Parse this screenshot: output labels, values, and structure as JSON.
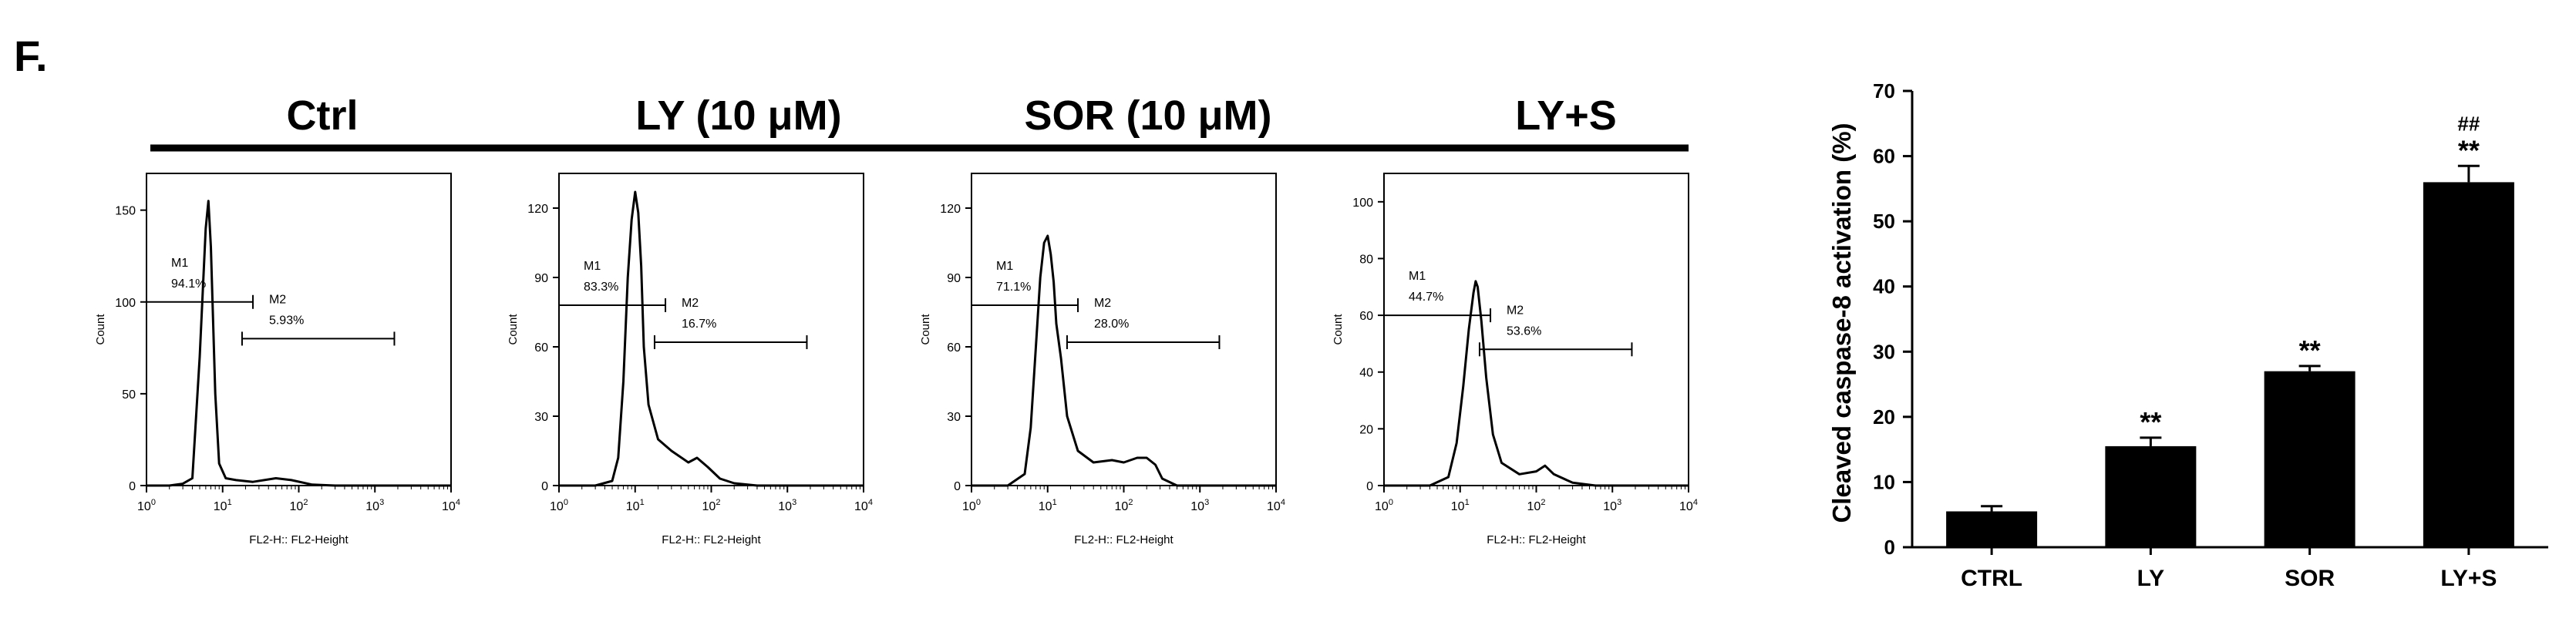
{
  "panel_label": "F.",
  "histogram_axis_xlabel": "FL2-H:: FL2-Height",
  "histogram_axis_ylabel": "Count",
  "chart_data": [
    {
      "type": "histogram",
      "title": "Ctrl",
      "xlabel": "FL2-H:: FL2-Height",
      "ylabel": "Count",
      "xscale": "log",
      "xlim": [
        1,
        10000
      ],
      "ylim": [
        0,
        170
      ],
      "yticks": [
        0,
        50,
        100,
        150
      ],
      "gates": [
        {
          "name": "M1",
          "percent": "94.1%",
          "range": [
            1,
            25
          ],
          "level": 100
        },
        {
          "name": "M2",
          "percent": "5.93%",
          "range": [
            18,
            1800
          ],
          "level": 80
        }
      ],
      "profile": [
        [
          1,
          0
        ],
        [
          2,
          0
        ],
        [
          3,
          1
        ],
        [
          4,
          4
        ],
        [
          5,
          70
        ],
        [
          6,
          140
        ],
        [
          6.5,
          155
        ],
        [
          7,
          130
        ],
        [
          8,
          50
        ],
        [
          9,
          12
        ],
        [
          11,
          4
        ],
        [
          15,
          3
        ],
        [
          25,
          2
        ],
        [
          50,
          4
        ],
        [
          80,
          3
        ],
        [
          150,
          0.5
        ],
        [
          300,
          0
        ],
        [
          10000,
          0
        ]
      ]
    },
    {
      "type": "histogram",
      "title": "LY (10 μM)",
      "xlabel": "FL2-H:: FL2-Height",
      "ylabel": "Count",
      "xscale": "log",
      "xlim": [
        1,
        10000
      ],
      "ylim": [
        0,
        135
      ],
      "yticks": [
        0,
        30,
        60,
        90,
        120
      ],
      "gates": [
        {
          "name": "M1",
          "percent": "83.3%",
          "range": [
            1,
            25
          ],
          "level": 78
        },
        {
          "name": "M2",
          "percent": "16.7%",
          "range": [
            18,
            1800
          ],
          "level": 62
        }
      ],
      "profile": [
        [
          1,
          0
        ],
        [
          3,
          0
        ],
        [
          5,
          2
        ],
        [
          6,
          12
        ],
        [
          7,
          45
        ],
        [
          8,
          90
        ],
        [
          9,
          115
        ],
        [
          10,
          127
        ],
        [
          11,
          118
        ],
        [
          12,
          95
        ],
        [
          13,
          60
        ],
        [
          15,
          35
        ],
        [
          20,
          20
        ],
        [
          30,
          15
        ],
        [
          50,
          10
        ],
        [
          65,
          12
        ],
        [
          90,
          8
        ],
        [
          130,
          3
        ],
        [
          200,
          1
        ],
        [
          400,
          0
        ],
        [
          10000,
          0
        ]
      ]
    },
    {
      "type": "histogram",
      "title": "SOR (10 μM)",
      "xlabel": "FL2-H:: FL2-Height",
      "ylabel": "Count",
      "xscale": "log",
      "xlim": [
        1,
        10000
      ],
      "ylim": [
        0,
        135
      ],
      "yticks": [
        0,
        30,
        60,
        90,
        120
      ],
      "gates": [
        {
          "name": "M1",
          "percent": "71.1%",
          "range": [
            1,
            25
          ],
          "level": 78
        },
        {
          "name": "M2",
          "percent": "28.0%",
          "range": [
            18,
            1800
          ],
          "level": 62
        }
      ],
      "profile": [
        [
          1,
          0
        ],
        [
          3,
          0
        ],
        [
          5,
          5
        ],
        [
          6,
          25
        ],
        [
          7,
          60
        ],
        [
          8,
          90
        ],
        [
          9,
          105
        ],
        [
          10,
          108
        ],
        [
          11,
          100
        ],
        [
          12,
          88
        ],
        [
          13,
          70
        ],
        [
          15,
          55
        ],
        [
          18,
          30
        ],
        [
          25,
          15
        ],
        [
          40,
          10
        ],
        [
          70,
          11
        ],
        [
          100,
          10
        ],
        [
          150,
          12
        ],
        [
          200,
          12
        ],
        [
          260,
          9
        ],
        [
          320,
          3
        ],
        [
          500,
          0
        ],
        [
          10000,
          0
        ]
      ]
    },
    {
      "type": "histogram",
      "title": "LY+S",
      "xlabel": "FL2-H:: FL2-Height",
      "ylabel": "Count",
      "xscale": "log",
      "xlim": [
        1,
        10000
      ],
      "ylim": [
        0,
        110
      ],
      "yticks": [
        0,
        20,
        40,
        60,
        80,
        100
      ],
      "gates": [
        {
          "name": "M1",
          "percent": "44.7%",
          "range": [
            1,
            25
          ],
          "level": 60
        },
        {
          "name": "M2",
          "percent": "53.6%",
          "range": [
            18,
            1800
          ],
          "level": 48
        }
      ],
      "profile": [
        [
          1,
          0
        ],
        [
          4,
          0
        ],
        [
          7,
          3
        ],
        [
          9,
          15
        ],
        [
          11,
          35
        ],
        [
          13,
          55
        ],
        [
          15,
          68
        ],
        [
          16,
          72
        ],
        [
          17,
          70
        ],
        [
          19,
          58
        ],
        [
          22,
          38
        ],
        [
          27,
          18
        ],
        [
          35,
          8
        ],
        [
          60,
          4
        ],
        [
          100,
          5
        ],
        [
          130,
          7
        ],
        [
          170,
          4
        ],
        [
          300,
          1
        ],
        [
          600,
          0
        ],
        [
          10000,
          0
        ]
      ]
    },
    {
      "type": "bar",
      "ylabel": "Cleaved caspase-8 activation (%)",
      "categories": [
        "CTRL",
        "LY",
        "SOR",
        "LY+S"
      ],
      "values": [
        5.5,
        15.5,
        27,
        56
      ],
      "errors": [
        0.8,
        1.3,
        0.8,
        2.5
      ],
      "annotations": [
        "",
        "**",
        "**",
        "**"
      ],
      "annotations2": [
        "",
        "",
        "",
        "##"
      ],
      "ylim": [
        0,
        70
      ],
      "yticks": [
        0,
        10,
        20,
        30,
        40,
        50,
        60,
        70
      ]
    }
  ]
}
